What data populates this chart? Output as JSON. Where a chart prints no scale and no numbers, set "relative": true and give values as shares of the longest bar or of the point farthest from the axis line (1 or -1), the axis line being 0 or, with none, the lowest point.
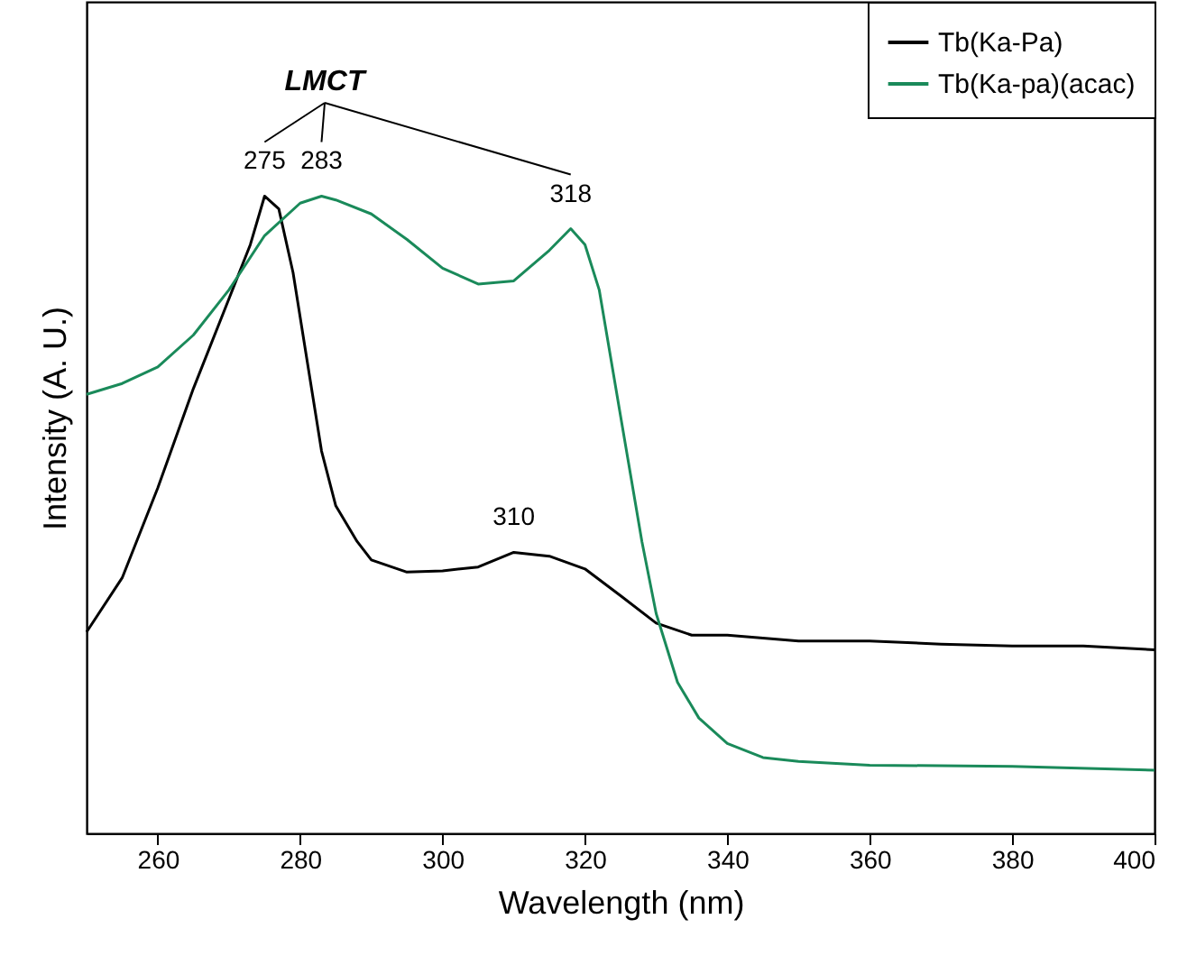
{
  "chart_data": {
    "type": "line",
    "relative": true,
    "xlabel": "Wavelength (nm)",
    "ylabel": "Intensity (A. U.)",
    "xlim": [
      250,
      400
    ],
    "xticks": [
      260,
      280,
      300,
      320,
      340,
      360,
      380,
      400
    ],
    "tick_labels": "x",
    "grid": false,
    "legend": "top right",
    "line_style": "solid",
    "series": [
      {
        "name": "Tb(Ka-Pa)",
        "color": "#000000",
        "x": [
          250,
          255,
          260,
          265,
          270,
          273,
          275,
          277,
          279,
          281,
          283,
          285,
          288,
          290,
          295,
          300,
          305,
          310,
          315,
          320,
          325,
          330,
          335,
          340,
          350,
          360,
          370,
          380,
          390,
          400
        ],
        "values": [
          0.316,
          0.401,
          0.542,
          0.698,
          0.839,
          0.924,
          1.0,
          0.98,
          0.88,
          0.74,
          0.6,
          0.514,
          0.458,
          0.429,
          0.41,
          0.412,
          0.418,
          0.441,
          0.435,
          0.415,
          0.373,
          0.33,
          0.311,
          0.311,
          0.302,
          0.302,
          0.297,
          0.294,
          0.294,
          0.288
        ]
      },
      {
        "name": "Tb(Ka-pa)(acac)",
        "color": "#1a8a5a",
        "x": [
          250,
          255,
          260,
          265,
          270,
          275,
          280,
          283,
          285,
          290,
          295,
          300,
          305,
          310,
          315,
          318,
          320,
          322,
          325,
          328,
          330,
          333,
          336,
          340,
          345,
          350,
          360,
          380,
          400
        ],
        "values": [
          0.689,
          0.706,
          0.732,
          0.782,
          0.853,
          0.938,
          0.989,
          1.0,
          0.994,
          0.972,
          0.932,
          0.887,
          0.862,
          0.867,
          0.915,
          0.949,
          0.924,
          0.853,
          0.655,
          0.458,
          0.345,
          0.237,
          0.181,
          0.141,
          0.119,
          0.113,
          0.107,
          0.105,
          0.099
        ]
      }
    ],
    "annotations": [
      "LMCT",
      {
        "text": "275",
        "x": 275,
        "y": 1.0
      },
      {
        "text": "283",
        "x": 283,
        "y": 1.0
      },
      {
        "text": "318",
        "x": 318,
        "y": 0.949
      },
      {
        "text": "310",
        "x": 310,
        "y": 0.441
      }
    ]
  }
}
